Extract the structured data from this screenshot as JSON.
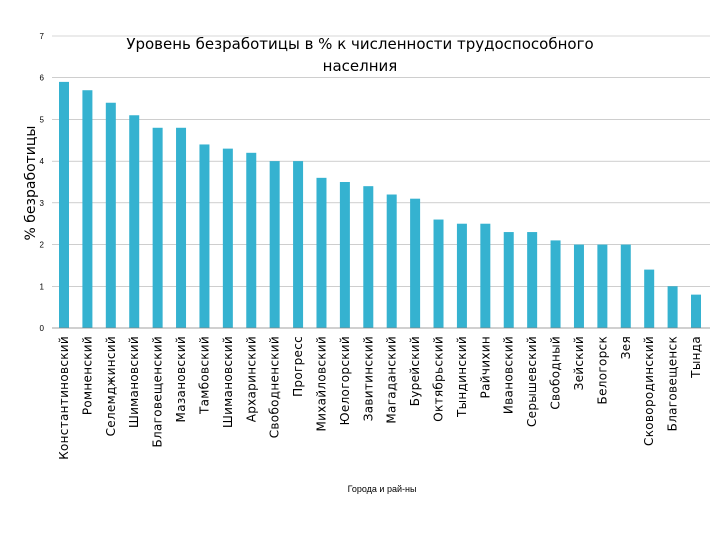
{
  "chart_data": {
    "type": "bar",
    "title_line1": "Уровень безработицы в % к численности трудоспособного",
    "title_line2": "населния",
    "xlabel": "Города и рай-ны",
    "ylabel": "% безработицы",
    "ylim": [
      0,
      7
    ],
    "yticks": [
      "0",
      "1",
      "2",
      "3",
      "4",
      "5",
      "6",
      "7"
    ],
    "grid": true,
    "bar_color": "#35b2d0",
    "categories": [
      "Константиновский",
      "Ромненский",
      "Селемджинсий",
      "Шимановский",
      "Благовещенский",
      "Мазановский",
      "Тамбовский",
      "Шимановский",
      "Архаринский",
      "Свободненский",
      "Прогресс",
      "Михайловский",
      "Юелогорский",
      "Завитинский",
      "Магаданский",
      "Бурейский",
      "Октябрьский",
      "Тындинский",
      "Райчихин",
      "Ивановский",
      "Серышевский",
      "Свободный",
      "Зейский",
      "Белогорск",
      "Зея",
      "Сковородинский",
      "Благовещенск",
      "Тында"
    ],
    "values": [
      5.9,
      5.7,
      5.4,
      5.1,
      4.8,
      4.8,
      4.4,
      4.3,
      4.2,
      4.0,
      4.0,
      3.6,
      3.5,
      3.4,
      3.2,
      3.1,
      2.6,
      2.5,
      2.5,
      2.3,
      2.3,
      2.1,
      2.0,
      2.0,
      2.0,
      1.4,
      1.0,
      0.8
    ]
  }
}
